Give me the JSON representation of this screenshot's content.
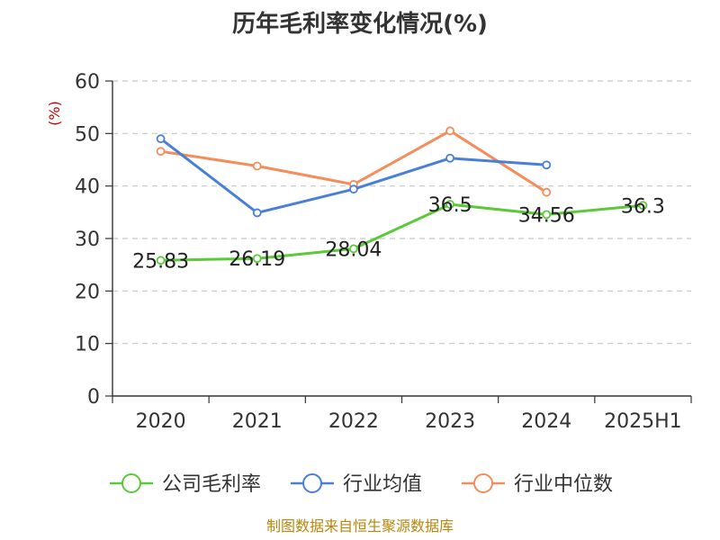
{
  "title": "历年毛利率变化情况(%)",
  "source": "制图数据来自恒生聚源数据库",
  "chart_data": {
    "type": "line",
    "title": "历年毛利率变化情况(%)",
    "ylabel": "(%)",
    "xlabel": "",
    "categories": [
      "2020",
      "2021",
      "2022",
      "2023",
      "2024",
      "2025H1"
    ],
    "ylim": [
      0,
      60
    ],
    "yticks": [
      "0",
      "10",
      "20",
      "30",
      "40",
      "50",
      "60"
    ],
    "grid": true,
    "legend_position": "bottom",
    "series": [
      {
        "name": "公司毛利率",
        "color": "#5cc93a",
        "values": [
          25.83,
          26.19,
          28.04,
          36.5,
          34.56,
          36.3
        ],
        "labels": [
          "25.83",
          "26.19",
          "28.04",
          "36.5",
          "34.56",
          "36.3"
        ]
      },
      {
        "name": "行业均值",
        "color": "#4a7fd9",
        "values": [
          49.0,
          34.9,
          39.4,
          45.3,
          44.0,
          null
        ]
      },
      {
        "name": "行业中位数",
        "color": "#f58d5a",
        "values": [
          46.6,
          43.8,
          40.3,
          50.5,
          38.8,
          null
        ]
      }
    ]
  }
}
